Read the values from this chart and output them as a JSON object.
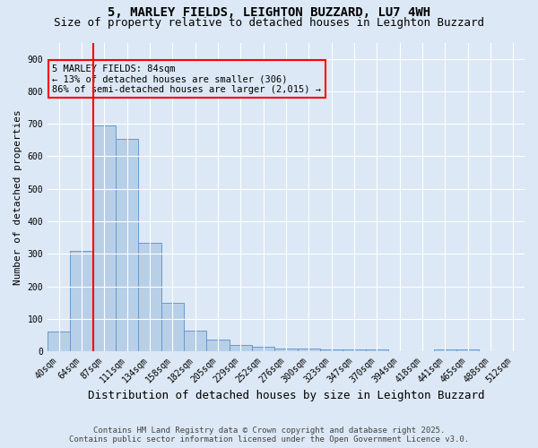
{
  "title": "5, MARLEY FIELDS, LEIGHTON BUZZARD, LU7 4WH",
  "subtitle": "Size of property relative to detached houses in Leighton Buzzard",
  "xlabel": "Distribution of detached houses by size in Leighton Buzzard",
  "ylabel": "Number of detached properties",
  "categories": [
    "40sqm",
    "64sqm",
    "87sqm",
    "111sqm",
    "134sqm",
    "158sqm",
    "182sqm",
    "205sqm",
    "229sqm",
    "252sqm",
    "276sqm",
    "300sqm",
    "323sqm",
    "347sqm",
    "370sqm",
    "394sqm",
    "418sqm",
    "441sqm",
    "465sqm",
    "488sqm",
    "512sqm"
  ],
  "values": [
    60,
    310,
    695,
    655,
    335,
    150,
    65,
    35,
    20,
    13,
    8,
    8,
    5,
    5,
    5,
    0,
    0,
    5,
    5,
    0,
    0
  ],
  "bar_color": "#b8cfe8",
  "bar_edge_color": "#6699cc",
  "background_color": "#dce8f5",
  "red_line_index": 2,
  "annotation_text": "5 MARLEY FIELDS: 84sqm\n← 13% of detached houses are smaller (306)\n86% of semi-detached houses are larger (2,015) →",
  "ylim": [
    0,
    950
  ],
  "yticks": [
    0,
    100,
    200,
    300,
    400,
    500,
    600,
    700,
    800,
    900
  ],
  "footer1": "Contains HM Land Registry data © Crown copyright and database right 2025.",
  "footer2": "Contains public sector information licensed under the Open Government Licence v3.0.",
  "title_fontsize": 10,
  "subtitle_fontsize": 9,
  "xlabel_fontsize": 9,
  "ylabel_fontsize": 8,
  "tick_fontsize": 7,
  "annotation_fontsize": 7.5,
  "footer_fontsize": 6.5
}
